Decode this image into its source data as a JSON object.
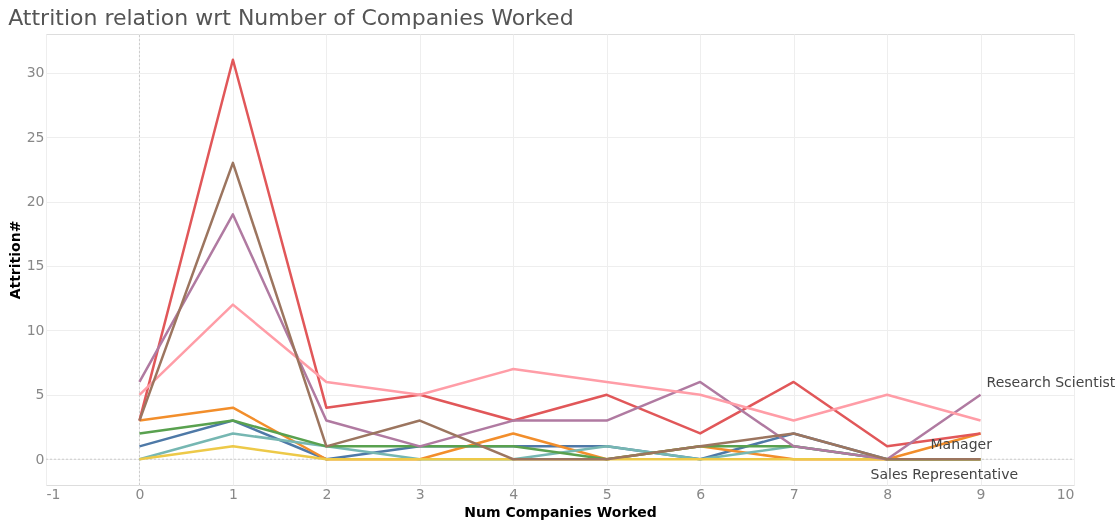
{
  "chart_data": {
    "type": "line",
    "title": "Attrition relation wrt Number of Companies Worked",
    "xlabel": "Num Companies Worked",
    "ylabel": "Attrition#",
    "x": [
      0,
      1,
      2,
      3,
      4,
      5,
      6,
      7,
      8,
      9
    ],
    "xlim": [
      -1,
      10
    ],
    "xticks": [
      -1,
      0,
      1,
      2,
      3,
      4,
      5,
      6,
      7,
      8,
      9,
      10
    ],
    "ylim": [
      -2,
      33
    ],
    "yticks": [
      0,
      5,
      10,
      15,
      20,
      25,
      30
    ],
    "grid": true,
    "line_style": "solid",
    "marker": "none",
    "series": [
      {
        "color": "#4e79a7",
        "values": [
          1,
          3,
          0,
          1,
          1,
          1,
          0,
          2,
          0,
          0
        ]
      },
      {
        "color": "#f28e2b",
        "values": [
          3,
          4,
          0,
          0,
          2,
          0,
          1,
          0,
          0,
          2
        ]
      },
      {
        "color": "#e15759",
        "values": [
          3,
          31,
          4,
          5,
          3,
          5,
          2,
          6,
          1,
          2
        ]
      },
      {
        "name": "Manager",
        "color": "#76b7b2",
        "values": [
          0,
          2,
          1,
          0,
          0,
          1,
          0,
          1,
          0,
          0
        ]
      },
      {
        "color": "#59a14f",
        "values": [
          2,
          3,
          1,
          1,
          1,
          0,
          1,
          1,
          0,
          0
        ]
      },
      {
        "color": "#edc948",
        "values": [
          0,
          1,
          0,
          0,
          0,
          0,
          0,
          0,
          0,
          0
        ]
      },
      {
        "name": "Research Scientist",
        "color": "#b07aa1",
        "values": [
          6,
          19,
          3,
          1,
          3,
          3,
          6,
          1,
          0,
          5
        ]
      },
      {
        "color": "#ff9da7",
        "values": [
          5,
          12,
          6,
          5,
          7,
          6,
          5,
          3,
          5,
          3
        ]
      },
      {
        "name": "Sales Representative",
        "color": "#9c755f",
        "values": [
          3,
          23,
          1,
          3,
          0,
          0,
          1,
          2,
          0,
          0
        ]
      }
    ]
  }
}
